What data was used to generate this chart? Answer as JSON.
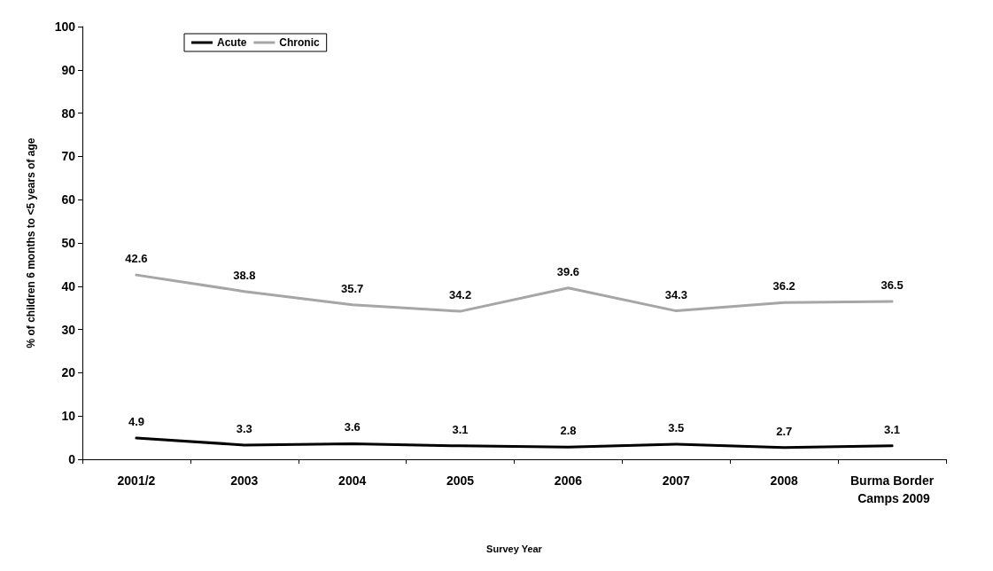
{
  "chart_data": {
    "type": "line",
    "xlabel": "Survey Year",
    "ylabel": "% of children 6 months to <5 years of age",
    "categories": [
      "2001/2",
      "2003",
      "2004",
      "2005",
      "2006",
      "2007",
      "2008",
      "Burma Border Camps 2009"
    ],
    "series": [
      {
        "name": "Acute",
        "color": "#000000",
        "values": [
          4.9,
          3.3,
          3.6,
          3.1,
          2.8,
          3.5,
          2.7,
          3.1
        ]
      },
      {
        "name": "Chronic",
        "color": "#a6a6a6",
        "values": [
          42.6,
          38.8,
          35.7,
          34.2,
          39.6,
          34.3,
          36.2,
          36.5
        ]
      }
    ],
    "ylim": [
      0,
      100
    ],
    "yticks": [
      0,
      10,
      20,
      30,
      40,
      50,
      60,
      70,
      80,
      90,
      100
    ],
    "data_labels": true,
    "grid": false,
    "legend": "top left",
    "marker": "none",
    "line_style": "solid"
  }
}
